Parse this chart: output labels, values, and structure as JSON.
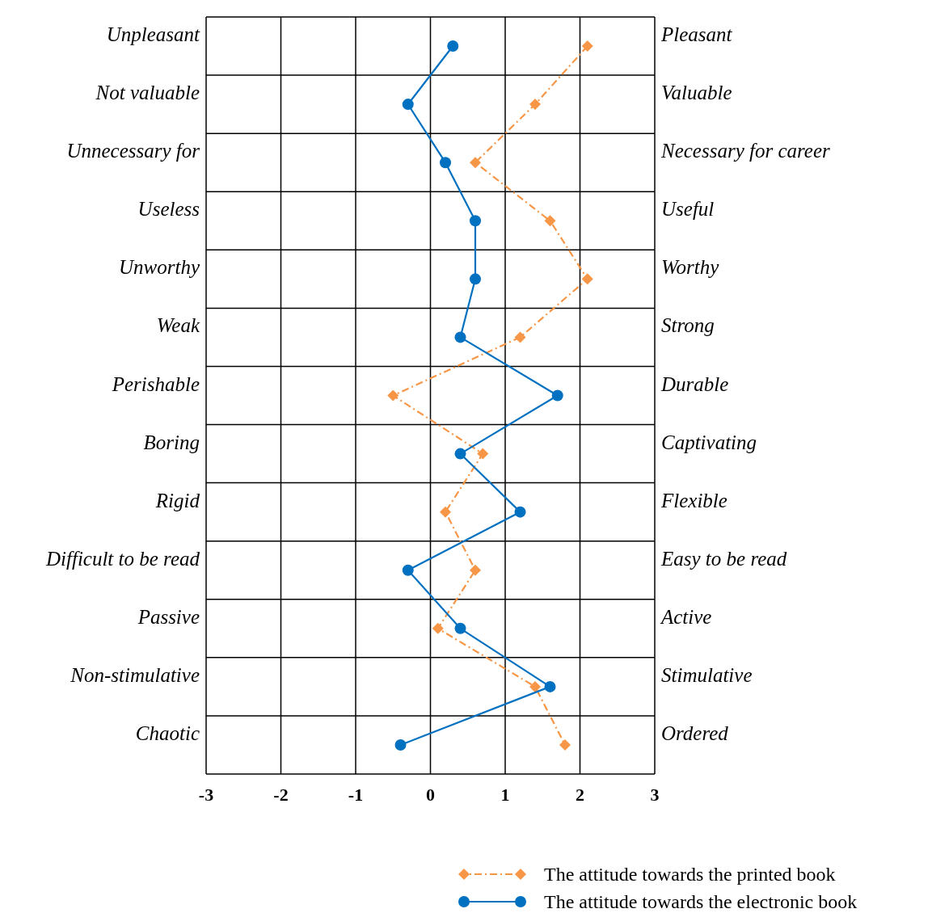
{
  "chart_data": {
    "type": "line",
    "orientation": "horizontal",
    "categories": [
      "Unpleasant",
      "Not valuable",
      "Unnecessary for",
      "Useless",
      "Unworthy",
      "Weak",
      "Perishable",
      "Boring",
      "Rigid",
      "Difficult to be read",
      "Passive",
      "Non-stimulative",
      "Chaotic"
    ],
    "y2_categories": [
      "Pleasant",
      "Valuable",
      "Necessary for career",
      "Useful",
      "Worthy",
      "Strong",
      "Durable",
      "Captivating",
      "Flexible",
      "Easy to be read",
      "Active",
      "Stimulative",
      "Ordered"
    ],
    "xlim": [
      -3,
      3
    ],
    "xticks": [
      -3,
      -2,
      -1,
      0,
      1,
      2,
      3
    ],
    "grid": true,
    "legend": "bottom right",
    "series": [
      {
        "name": "The attitude towards the printed book",
        "color": "#f79646",
        "marker": "diamond",
        "line_style": "dashed",
        "values": [
          2.1,
          1.4,
          0.6,
          1.6,
          2.1,
          1.2,
          -0.5,
          0.7,
          0.2,
          0.6,
          0.1,
          1.4,
          1.8
        ]
      },
      {
        "name": "The attitude towards the electronic book",
        "color": "#0070c0",
        "marker": "circle",
        "line_style": "solid",
        "values": [
          0.3,
          -0.3,
          0.2,
          0.6,
          0.6,
          0.4,
          1.7,
          0.4,
          1.2,
          -0.3,
          0.4,
          1.6,
          -0.4
        ]
      }
    ]
  }
}
